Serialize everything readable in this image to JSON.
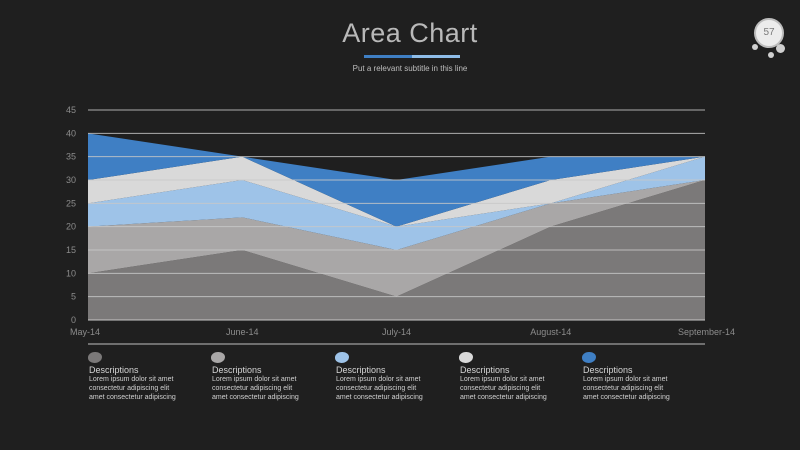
{
  "slide": {
    "title": "Area Chart",
    "subtitle": "Put a relevant subtitle in this line",
    "page_number": "57",
    "colors": {
      "background": "#1f1f1f",
      "accent_dark": "#3f7fc4",
      "accent_light": "#8fbde8",
      "axis": "#c8c8c8",
      "tick_text": "#8c8c8c"
    }
  },
  "chart_data": {
    "type": "area",
    "stacked": true,
    "categories": [
      "May-14",
      "June-14",
      "July-14",
      "August-14",
      "September-14"
    ],
    "ylim": [
      0,
      45
    ],
    "yticks": [
      0,
      5,
      10,
      15,
      20,
      25,
      30,
      35,
      40,
      45
    ],
    "grid": "horizontal",
    "series": [
      {
        "color": "#7b7979",
        "values": [
          10,
          15,
          5,
          20,
          30
        ]
      },
      {
        "color": "#a9a7a7",
        "values": [
          10,
          7,
          10,
          5,
          0
        ]
      },
      {
        "color": "#9ec3e8",
        "values": [
          5,
          8,
          5,
          0,
          5
        ]
      },
      {
        "color": "#d9d9d9",
        "values": [
          5,
          5,
          0,
          5,
          0
        ]
      },
      {
        "color": "#3f7fc4",
        "values": [
          10,
          0,
          10,
          5,
          0
        ]
      }
    ]
  },
  "legend": [
    {
      "color": "#7b7979",
      "title": "Descriptions",
      "lines": [
        "Lorem ipsum dolor sit amet",
        "consectetur adipiscing elit",
        "amet consectetur adipiscing"
      ]
    },
    {
      "color": "#a9a7a7",
      "title": "Descriptions",
      "lines": [
        "Lorem ipsum dolor sit amet",
        "consectetur adipiscing elit",
        "amet consectetur adipiscing"
      ]
    },
    {
      "color": "#9ec3e8",
      "title": "Descriptions",
      "lines": [
        "Lorem ipsum dolor sit amet",
        "consectetur adipiscing elit",
        "amet consectetur adipiscing"
      ]
    },
    {
      "color": "#d9d9d9",
      "title": "Descriptions",
      "lines": [
        "Lorem ipsum dolor sit amet",
        "consectetur adipiscing elit",
        "amet consectetur adipiscing"
      ]
    },
    {
      "color": "#3f7fc4",
      "title": "Descriptions",
      "lines": [
        "Lorem ipsum dolor sit amet",
        "consectetur adipiscing elit",
        "amet consectetur adipiscing"
      ]
    }
  ]
}
